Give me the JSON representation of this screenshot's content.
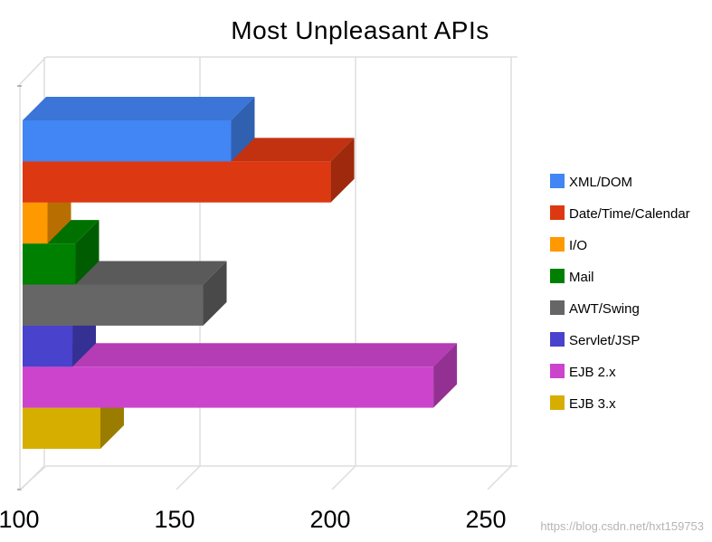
{
  "chart_data": {
    "type": "bar",
    "orientation": "horizontal",
    "style": "3d",
    "title": "Most Unpleasant APIs",
    "categories": [
      "XML/DOM",
      "Date/Time/Calendar",
      "I/O",
      "Mail",
      "AWT/Swing",
      "Servlet/JSP",
      "EJB 2.x",
      "EJB 3.x"
    ],
    "values": [
      167,
      199,
      108,
      117,
      158,
      116,
      232,
      125
    ],
    "colors": [
      "#4285f4",
      "#dc3912",
      "#ff9900",
      "#008000",
      "#666666",
      "#4942cc",
      "#cc44cc",
      "#d6ae00"
    ],
    "xlim": [
      100,
      250
    ],
    "xticks": [
      "100",
      "150",
      "200",
      "250"
    ],
    "xlabel": "",
    "ylabel": "",
    "grid": true,
    "legend_position": "right"
  },
  "watermark": "https://blog.csdn.net/hxt159753"
}
